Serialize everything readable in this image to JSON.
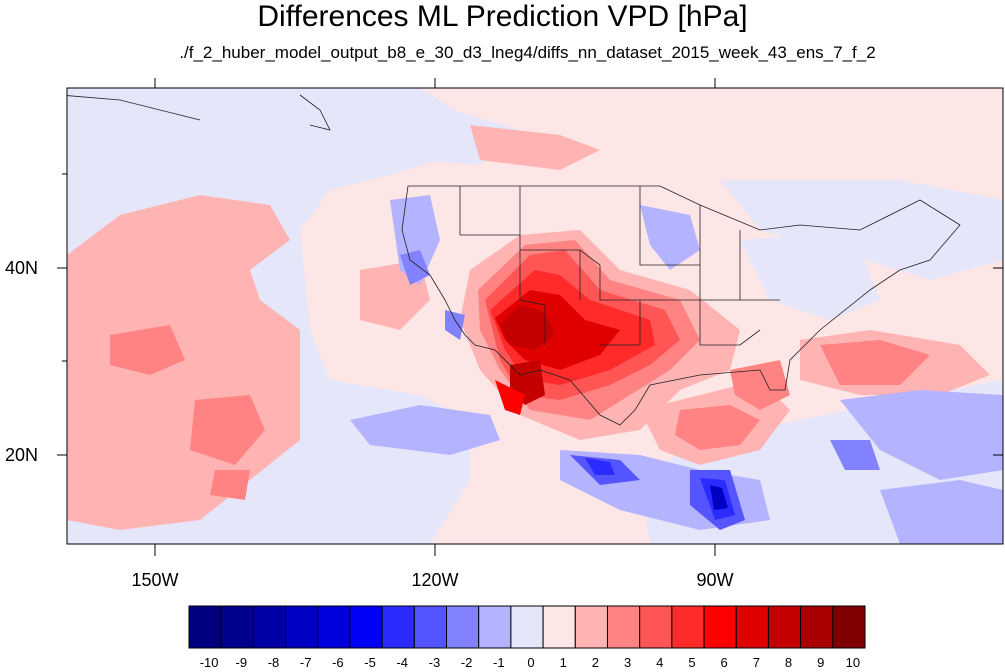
{
  "title": "Differences ML Prediction VPD [hPa]",
  "subtitle": "./f_2_huber_model_output_b8_e_30_d3_lneg4/diffs_nn_dataset_2015_week_43_ens_7_f_2",
  "map": {
    "lat_labels": [
      "40N",
      "20N"
    ],
    "lon_labels": [
      "150W",
      "120W",
      "90W"
    ],
    "background_color": "#fde6e6"
  },
  "colorbar": {
    "labels": [
      "-10",
      "-9",
      "-8",
      "-7",
      "-6",
      "-5",
      "-4",
      "-3",
      "-2",
      "-1",
      "0",
      "1",
      "2",
      "3",
      "4",
      "5",
      "6",
      "7",
      "8",
      "9",
      "10"
    ],
    "colors": [
      "#00007f",
      "#00008f",
      "#0000a6",
      "#0000c3",
      "#0000df",
      "#0000f8",
      "#2b2bff",
      "#5555ff",
      "#8282ff",
      "#b3b3ff",
      "#e6e6fb",
      "#fde6e6",
      "#ffb3b3",
      "#ff8383",
      "#ff5555",
      "#ff2b2b",
      "#ff0000",
      "#e00000",
      "#c50000",
      "#a80000",
      "#7f0000"
    ]
  }
}
